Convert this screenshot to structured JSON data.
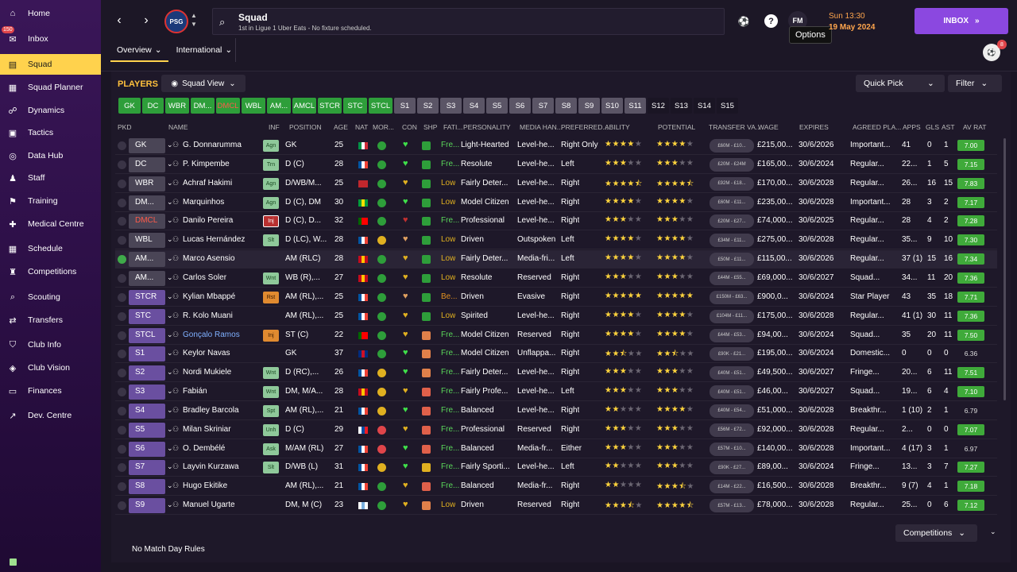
{
  "sidebar": [
    {
      "label": "Home",
      "icon": "home-icon"
    },
    {
      "label": "Inbox",
      "icon": "inbox-icon",
      "badge": "150"
    },
    {
      "label": "Squad",
      "icon": "squad-icon",
      "active": true
    },
    {
      "label": "Squad Planner",
      "icon": "squad-planner-icon"
    },
    {
      "label": "Dynamics",
      "icon": "dynamics-icon"
    },
    {
      "label": "Tactics",
      "icon": "tactics-icon"
    },
    {
      "label": "Data Hub",
      "icon": "data-hub-icon"
    },
    {
      "label": "Staff",
      "icon": "staff-icon"
    },
    {
      "label": "Training",
      "icon": "training-icon"
    },
    {
      "label": "Medical Centre",
      "icon": "medical-icon"
    },
    {
      "label": "Schedule",
      "icon": "schedule-icon"
    },
    {
      "label": "Competitions",
      "icon": "trophy-icon"
    },
    {
      "label": "Scouting",
      "icon": "scouting-icon"
    },
    {
      "label": "Transfers",
      "icon": "transfers-icon"
    },
    {
      "label": "Club Info",
      "icon": "club-info-icon"
    },
    {
      "label": "Club Vision",
      "icon": "club-vision-icon"
    },
    {
      "label": "Finances",
      "icon": "finances-icon"
    },
    {
      "label": "Dev. Centre",
      "icon": "dev-centre-icon"
    }
  ],
  "header": {
    "title": "Squad",
    "subtitle": "1st in Ligue 1 Uber Eats - No fixture scheduled.",
    "day": "Sun 13:30",
    "date": "19 May 2024",
    "inbox": "INBOX",
    "tooltip": "Options",
    "fm": "FM",
    "help": "?",
    "club": "PSG",
    "user_badge": "8"
  },
  "tabs": [
    "Overview",
    "International"
  ],
  "panel": {
    "title": "PLAYERS",
    "squad_view": "Squad View",
    "quick_pick": "Quick Pick",
    "filter": "Filter",
    "competitions": "Competitions",
    "no_rules": "No Match Day Rules"
  },
  "chips": [
    "GK",
    "DC",
    "WBR",
    "DM...",
    "DMCL",
    "WBL",
    "AM...",
    "AMCL",
    "STCR",
    "STC",
    "STCL",
    "S1",
    "S2",
    "S3",
    "S4",
    "S5",
    "S6",
    "S7",
    "S8",
    "S9",
    "S10",
    "S11",
    "S12",
    "S13",
    "S14",
    "S15"
  ],
  "columns": [
    "PKD",
    "NAME",
    "INF",
    "POSITION",
    "AGE",
    "NAT",
    "MOR...",
    "CON",
    "SHP",
    "FATI...",
    "PERSONALITY",
    "MEDIA HAN...",
    "PREFERRED...",
    "ABILITY",
    "POTENTIAL",
    "TRANSFER VA...",
    "WAGE",
    "EXPIRES",
    "AGREED PLA...",
    "APPS",
    "GLS",
    "AST",
    "AV RAT"
  ],
  "players": [
    {
      "pos": "GK",
      "name": "G. Donnarumma",
      "inf": "Agn",
      "position": "GK",
      "age": "25",
      "fat": "Fre...",
      "pers": "Light-Hearted",
      "media": "Level-he...",
      "foot": "Right Only",
      "ab": 4,
      "pot": 4,
      "tv": "£60M - £10...",
      "wage": "£215,00...",
      "exp": "30/6/2026",
      "agreed": "Important...",
      "apps": "41",
      "gls": "0",
      "ast": "1",
      "rat": "7.00"
    },
    {
      "pos": "DC",
      "name": "P. Kimpembe",
      "inf": "Trn",
      "position": "D (C)",
      "age": "28",
      "fat": "Fre...",
      "pers": "Resolute",
      "media": "Level-he...",
      "foot": "Left",
      "ab": 3,
      "pot": 3,
      "tv": "£20M - £24M",
      "wage": "£165,00...",
      "exp": "30/6/2024",
      "agreed": "Regular...",
      "apps": "22...",
      "gls": "1",
      "ast": "5",
      "rat": "7.15"
    },
    {
      "pos": "WBR",
      "name": "Achraf Hakimi",
      "inf": "Agn",
      "position": "D/WB/M...",
      "age": "25",
      "fat": "Low",
      "pers": "Fairly Deter...",
      "media": "Level-he...",
      "foot": "Right",
      "ab": 4.5,
      "pot": 4.5,
      "tv": "£92M - £18...",
      "wage": "£170,00...",
      "exp": "30/6/2028",
      "agreed": "Regular...",
      "apps": "26...",
      "gls": "16",
      "ast": "15",
      "rat": "7.83"
    },
    {
      "pos": "DM...",
      "name": "Marquinhos",
      "inf": "Agn",
      "position": "D (C), DM",
      "age": "30",
      "fat": "Low",
      "pers": "Model Citizen",
      "media": "Level-he...",
      "foot": "Right",
      "ab": 4,
      "pot": 4,
      "tv": "£60M - £11...",
      "wage": "£235,00...",
      "exp": "30/6/2028",
      "agreed": "Important...",
      "apps": "28",
      "gls": "3",
      "ast": "2",
      "rat": "7.17"
    },
    {
      "pos": "DMCL",
      "name": "Danilo Pereira",
      "inf": "Inj",
      "position": "D (C), D...",
      "age": "32",
      "fat": "Fre...",
      "pers": "Professional",
      "media": "Level-he...",
      "foot": "Right",
      "ab": 3,
      "pot": 3,
      "tv": "£20M - £27...",
      "wage": "£74,000...",
      "exp": "30/6/2025",
      "agreed": "Regular...",
      "apps": "28",
      "gls": "4",
      "ast": "2",
      "rat": "7.28"
    },
    {
      "pos": "WBL",
      "name": "Lucas Hernández",
      "inf": "Slt",
      "position": "D (LC), W...",
      "age": "28",
      "fat": "Low",
      "pers": "Driven",
      "media": "Outspoken",
      "foot": "Left",
      "ab": 4,
      "pot": 4,
      "tv": "£34M - £11...",
      "wage": "£275,00...",
      "exp": "30/6/2028",
      "agreed": "Regular...",
      "apps": "35...",
      "gls": "9",
      "ast": "10",
      "rat": "7.30"
    },
    {
      "pos": "AM...",
      "name": "Marco Asensio",
      "inf": "",
      "position": "AM (RLC)",
      "age": "28",
      "fat": "Low",
      "pers": "Fairly Deter...",
      "media": "Media-fri...",
      "foot": "Left",
      "ab": 4,
      "pot": 4,
      "tv": "£50M - £11...",
      "wage": "£115,00...",
      "exp": "30/6/2026",
      "agreed": "Regular...",
      "apps": "37 (1)",
      "gls": "15",
      "ast": "16",
      "rat": "7.34"
    },
    {
      "pos": "AM...",
      "name": "Carlos Soler",
      "inf": "Wnt",
      "position": "WB (R),...",
      "age": "27",
      "fat": "Low",
      "pers": "Resolute",
      "media": "Reserved",
      "foot": "Right",
      "ab": 3,
      "pot": 3,
      "tv": "£44M - £55...",
      "wage": "£69,000...",
      "exp": "30/6/2027",
      "agreed": "Squad...",
      "apps": "34...",
      "gls": "11",
      "ast": "20",
      "rat": "7.36"
    },
    {
      "pos": "STCR",
      "name": "Kylian Mbappé",
      "inf": "Rst",
      "position": "AM (RL),...",
      "age": "25",
      "fat": "Be...",
      "pers": "Driven",
      "media": "Evasive",
      "foot": "Right",
      "ab": 5,
      "pot": 5,
      "tv": "£150M - £63...",
      "wage": "£900,0...",
      "exp": "30/6/2024",
      "agreed": "Star Player",
      "apps": "43",
      "gls": "35",
      "ast": "18",
      "rat": "7.71"
    },
    {
      "pos": "STC",
      "name": "R. Kolo Muani",
      "inf": "",
      "position": "AM (RL),...",
      "age": "25",
      "fat": "Low",
      "pers": "Spirited",
      "media": "Level-he...",
      "foot": "Right",
      "ab": 4,
      "pot": 4,
      "tv": "£104M - £11...",
      "wage": "£175,00...",
      "exp": "30/6/2028",
      "agreed": "Regular...",
      "apps": "41 (1)",
      "gls": "30",
      "ast": "11",
      "rat": "7.36"
    },
    {
      "pos": "STCL",
      "name": "Gonçalo Ramos",
      "inf": "Inj",
      "position": "ST (C)",
      "age": "22",
      "fat": "Fre...",
      "pers": "Model Citizen",
      "media": "Reserved",
      "foot": "Right",
      "ab": 4,
      "pot": 4,
      "tv": "£44M - £53...",
      "wage": "£94,00...",
      "exp": "30/6/2024",
      "agreed": "Squad...",
      "apps": "35",
      "gls": "20",
      "ast": "11",
      "rat": "7.50"
    },
    {
      "pos": "S1",
      "name": "Keylor Navas",
      "inf": "",
      "position": "GK",
      "age": "37",
      "fat": "Fre...",
      "pers": "Model Citizen",
      "media": "Unflappa...",
      "foot": "Right",
      "ab": 2.5,
      "pot": 2.5,
      "tv": "£90K - £21...",
      "wage": "£195,00...",
      "exp": "30/6/2024",
      "agreed": "Domestic...",
      "apps": "0",
      "gls": "0",
      "ast": "0",
      "rat": "6.36"
    },
    {
      "pos": "S2",
      "name": "Nordi Mukiele",
      "inf": "Wnt",
      "position": "D (RC),...",
      "age": "26",
      "fat": "Fre...",
      "pers": "Fairly Deter...",
      "media": "Level-he...",
      "foot": "Right",
      "ab": 3,
      "pot": 3,
      "tv": "£40M - £51...",
      "wage": "£49,500...",
      "exp": "30/6/2027",
      "agreed": "Fringe...",
      "apps": "20...",
      "gls": "6",
      "ast": "11",
      "rat": "7.51"
    },
    {
      "pos": "S3",
      "name": "Fabián",
      "inf": "Wnt",
      "position": "DM, M/A...",
      "age": "28",
      "fat": "Fre...",
      "pers": "Fairly Profe...",
      "media": "Level-he...",
      "foot": "Left",
      "ab": 3,
      "pot": 3,
      "tv": "£40M - £51...",
      "wage": "£46,00...",
      "exp": "30/6/2027",
      "agreed": "Squad...",
      "apps": "19...",
      "gls": "6",
      "ast": "4",
      "rat": "7.10"
    },
    {
      "pos": "S4",
      "name": "Bradley Barcola",
      "inf": "Spt",
      "position": "AM (RL),...",
      "age": "21",
      "fat": "Fre...",
      "pers": "Balanced",
      "media": "Level-he...",
      "foot": "Right",
      "ab": 2,
      "pot": 4,
      "tv": "£40M - £54...",
      "wage": "£51,000...",
      "exp": "30/6/2028",
      "agreed": "Breakthr...",
      "apps": "1 (10)",
      "gls": "2",
      "ast": "1",
      "rat": "6.79"
    },
    {
      "pos": "S5",
      "name": "Milan Škriniar",
      "inf": "Unh",
      "position": "D (C)",
      "age": "29",
      "fat": "Fre...",
      "pers": "Professional",
      "media": "Reserved",
      "foot": "Right",
      "ab": 3,
      "pot": 3,
      "tv": "£56M - £72...",
      "wage": "£92,000...",
      "exp": "30/6/2028",
      "agreed": "Regular...",
      "apps": "2...",
      "gls": "0",
      "ast": "0",
      "rat": "7.07"
    },
    {
      "pos": "S6",
      "name": "O. Dembélé",
      "inf": "Ask",
      "position": "M/AM (RL)",
      "age": "27",
      "fat": "Fre...",
      "pers": "Balanced",
      "media": "Media-fr...",
      "foot": "Either",
      "ab": 3,
      "pot": 3,
      "tv": "£57M - £10...",
      "wage": "£140,00...",
      "exp": "30/6/2028",
      "agreed": "Important...",
      "apps": "4 (17)",
      "gls": "3",
      "ast": "1",
      "rat": "6.97"
    },
    {
      "pos": "S7",
      "name": "Layvin Kurzawa",
      "inf": "Slt",
      "position": "D/WB (L)",
      "age": "31",
      "fat": "Fre...",
      "pers": "Fairly Sporti...",
      "media": "Level-he...",
      "foot": "Left",
      "ab": 2,
      "pot": 3,
      "tv": "£90K - £27...",
      "wage": "£89,00...",
      "exp": "30/6/2024",
      "agreed": "Fringe...",
      "apps": "13...",
      "gls": "3",
      "ast": "7",
      "rat": "7.27"
    },
    {
      "pos": "S8",
      "name": "Hugo Ekitike",
      "inf": "",
      "position": "AM (RL),...",
      "age": "21",
      "fat": "Fre...",
      "pers": "Balanced",
      "media": "Media-fr...",
      "foot": "Right",
      "ab": 2,
      "pot": 3.5,
      "tv": "£14M - £22...",
      "wage": "£16,500...",
      "exp": "30/6/2028",
      "agreed": "Breakthr...",
      "apps": "9 (7)",
      "gls": "4",
      "ast": "1",
      "rat": "7.18"
    },
    {
      "pos": "S9",
      "name": "Manuel Ugarte",
      "inf": "",
      "position": "DM, M (C)",
      "age": "23",
      "fat": "Low",
      "pers": "Driven",
      "media": "Reserved",
      "foot": "Right",
      "ab": 3.5,
      "pot": 4.5,
      "tv": "£57M - £13...",
      "wage": "£78,000...",
      "exp": "30/6/2028",
      "agreed": "Regular...",
      "apps": "25...",
      "gls": "0",
      "ast": "6",
      "rat": "7.12"
    }
  ]
}
